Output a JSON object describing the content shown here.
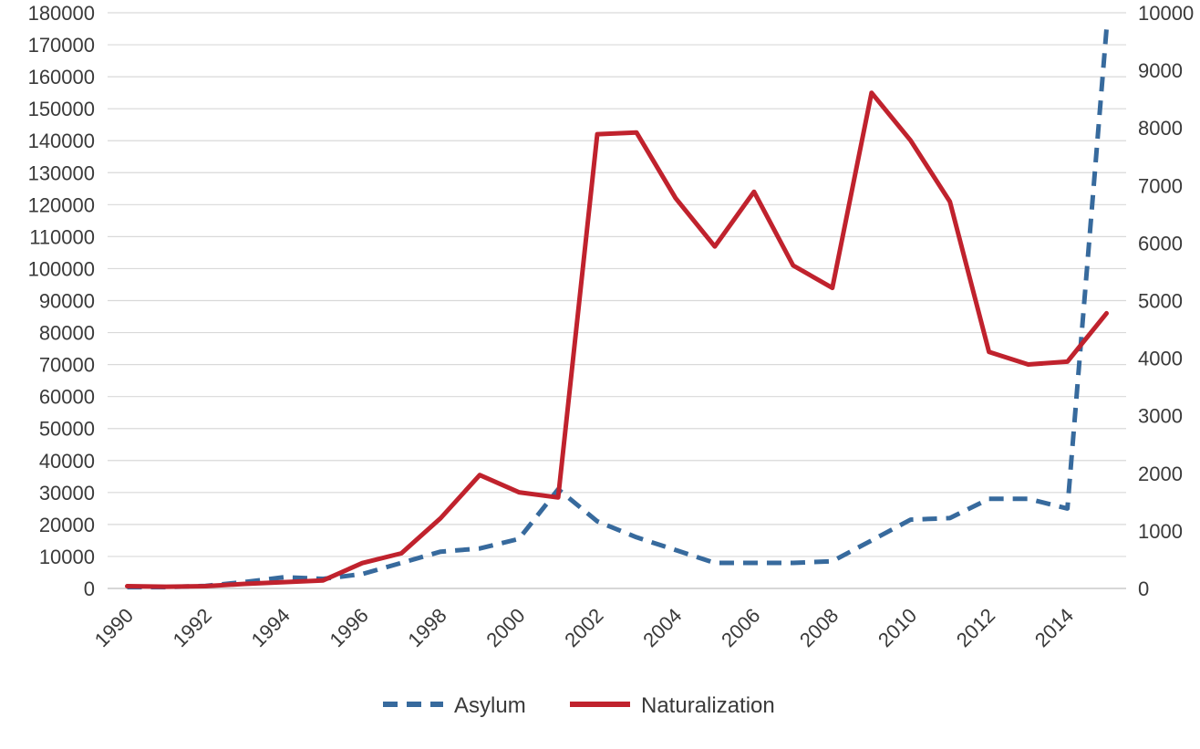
{
  "chart_data": {
    "type": "line",
    "title": "",
    "xlabel": "",
    "ylabel_left": "",
    "ylabel_right": "",
    "grid": true,
    "legend_position": "bottom",
    "grid_color": "#d9d9d9",
    "zero_line_color": "#bfbfbf",
    "text_color": "#3a3a3a",
    "x": [
      1990,
      1991,
      1992,
      1993,
      1994,
      1995,
      1996,
      1997,
      1998,
      1999,
      2000,
      2001,
      2002,
      2003,
      2004,
      2005,
      2006,
      2007,
      2008,
      2009,
      2010,
      2011,
      2012,
      2013,
      2014,
      2015
    ],
    "x_tick_labels": [
      "1990",
      "1992",
      "1994",
      "1996",
      "1998",
      "2000",
      "2002",
      "2004",
      "2006",
      "2008",
      "2010",
      "2012",
      "2014"
    ],
    "axes": {
      "left": {
        "min": 0,
        "max": 180000,
        "step": 10000,
        "tick_labels": [
          "0",
          "10000",
          "20000",
          "30000",
          "40000",
          "50000",
          "60000",
          "70000",
          "80000",
          "90000",
          "100000",
          "110000",
          "120000",
          "130000",
          "140000",
          "150000",
          "160000",
          "170000",
          "180000"
        ]
      },
      "right": {
        "min": 0,
        "max": 10000,
        "step": 1000,
        "tick_labels": [
          "0",
          "1000",
          "2000",
          "3000",
          "4000",
          "5000",
          "6000",
          "7000",
          "8000",
          "9000",
          "10000"
        ]
      }
    },
    "series": [
      {
        "name": "Asylum",
        "axis": "left",
        "color": "#376a9d",
        "line_style": "dashed",
        "values": [
          400,
          400,
          800,
          2000,
          3500,
          3000,
          4500,
          8000,
          11500,
          12500,
          15500,
          31000,
          21000,
          16000,
          12000,
          8000,
          8000,
          8000,
          8500,
          15000,
          21500,
          22000,
          28000,
          28000,
          25000,
          175000
        ]
      },
      {
        "name": "Naturalization",
        "axis": "right",
        "color": "#c0222d",
        "line_style": "solid",
        "values": [
          40,
          30,
          40,
          80,
          110,
          140,
          440,
          610,
          1220,
          1970,
          1670,
          1580,
          7890,
          7920,
          6780,
          5940,
          6890,
          5610,
          5220,
          8610,
          7780,
          6720,
          4110,
          3890,
          3940,
          4780
        ]
      }
    ],
    "legend": [
      "Asylum",
      "Naturalization"
    ]
  }
}
